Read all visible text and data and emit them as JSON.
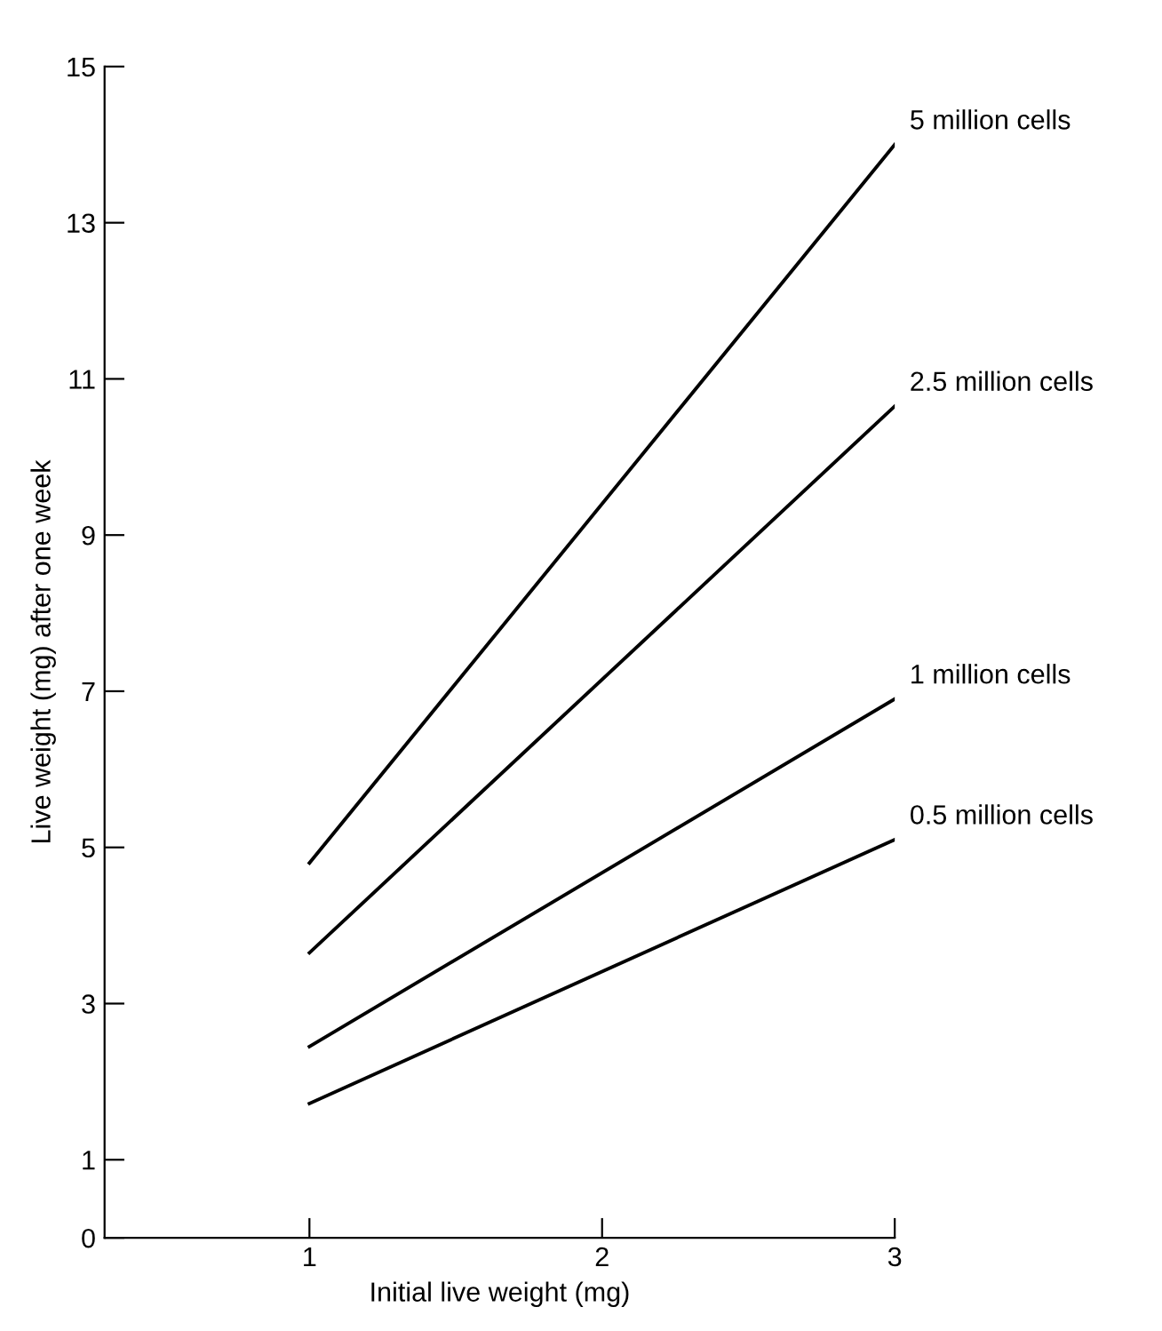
{
  "chart_data": {
    "type": "line",
    "xlabel": "Initial live weight (mg)",
    "ylabel": "Live weight (mg) after one week",
    "x": [
      1,
      3
    ],
    "series": [
      {
        "name": "5 million cells",
        "color": "#000000",
        "values": [
          4.8,
          14.0
        ]
      },
      {
        "name": "2.5 million cells",
        "color": "#000000",
        "values": [
          3.65,
          10.65
        ]
      },
      {
        "name": "1 million cells",
        "color": "#000000",
        "values": [
          2.45,
          6.9
        ]
      },
      {
        "name": "0.5 million cells",
        "color": "#000000",
        "values": [
          1.72,
          5.1
        ]
      }
    ],
    "xlim": [
      0.3,
      3
    ],
    "ylim": [
      0,
      15
    ],
    "xticks": [
      1,
      2,
      3
    ],
    "yticks": [
      0,
      1,
      3,
      5,
      7,
      9,
      11,
      13,
      15
    ],
    "grid": false,
    "legend": false,
    "marker": "none",
    "line_style": "solid"
  }
}
